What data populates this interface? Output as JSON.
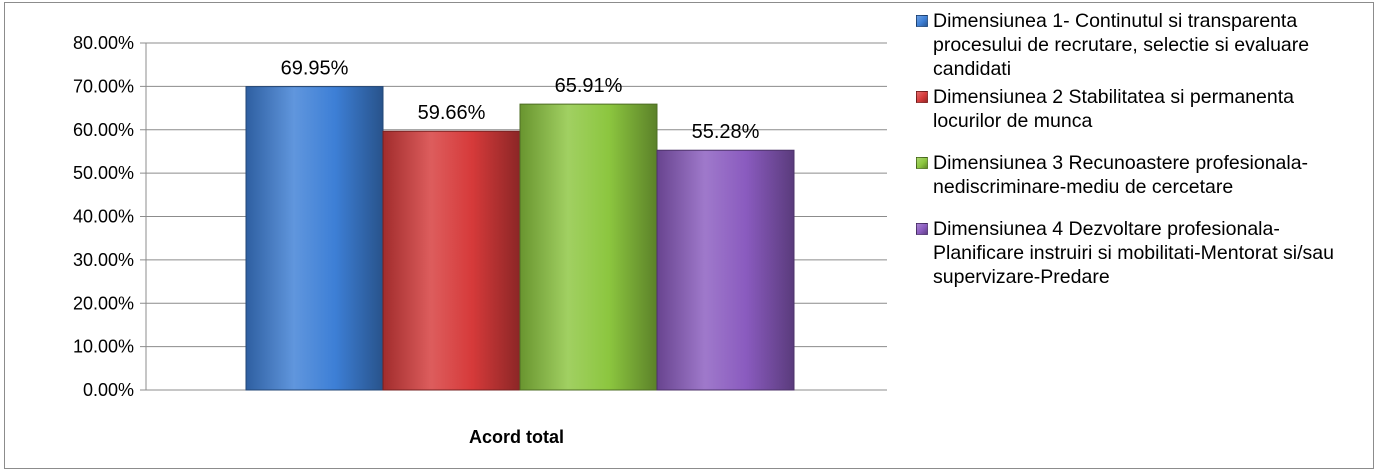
{
  "chart_data": {
    "type": "bar",
    "categories": [
      "Acord total"
    ],
    "series": [
      {
        "name": "Dimensiunea 1- Continutul si transparenta procesului de recrutare, selectie si evaluare candidati",
        "values": [
          69.95
        ],
        "label": "69.95%",
        "color": "#3d7fd6"
      },
      {
        "name": "Dimensiunea 2 Stabilitatea si permanenta locurilor de munca",
        "values": [
          59.66
        ],
        "label": "59.66%",
        "color": "#d63a3a"
      },
      {
        "name": "Dimensiunea 3 Recunoastere profesionala-nediscriminare-mediu de cercetare",
        "values": [
          65.91
        ],
        "label": "65.91%",
        "color": "#8cc63f"
      },
      {
        "name": "Dimensiunea 4 Dezvoltare profesionala-Planificare instruiri si mobilitati-Mentorat si/sau supervizare-Predare",
        "values": [
          55.28
        ],
        "label": "55.28%",
        "color": "#8a5bbf"
      }
    ],
    "y_ticks": [
      "0.00%",
      "10.00%",
      "20.00%",
      "30.00%",
      "40.00%",
      "50.00%",
      "60.00%",
      "70.00%",
      "80.00%"
    ],
    "ylim": [
      0,
      80
    ],
    "grid": true,
    "legend_position": "right"
  }
}
